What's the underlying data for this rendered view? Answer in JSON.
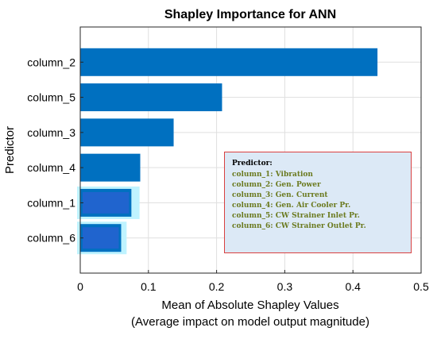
{
  "chart_data": {
    "type": "bar",
    "orientation": "horizontal",
    "title": "Shapley Importance for ANN",
    "xlabel": "Mean of Absolute Shapley Values",
    "xlabel_sub": "(Average impact on model output magnitude)",
    "ylabel": "Predictor",
    "xlim": [
      0,
      0.5
    ],
    "xticks": [
      "0",
      "0.1",
      "0.2",
      "0.3",
      "0.4",
      "0.5"
    ],
    "categories": [
      "column_2",
      "column_5",
      "column_3",
      "column_4",
      "column_1",
      "column_6"
    ],
    "values": [
      0.436,
      0.208,
      0.137,
      0.088,
      0.075,
      0.06
    ],
    "spread_upper": [
      null,
      null,
      null,
      null,
      0.087,
      0.068
    ],
    "grid": true,
    "bar_color": "#0070c0",
    "legend": {
      "placement": "lower-right",
      "title": "Predictor:",
      "items": [
        "column_1: Vibration",
        "column_2: Gen. Power",
        "column_3: Gen. Current",
        "column_4: Gen. Air Cooler Pr.",
        "column_5: CW Strainer Inlet Pr.",
        "column_6: CW Strainer Outlet Pr."
      ]
    }
  }
}
